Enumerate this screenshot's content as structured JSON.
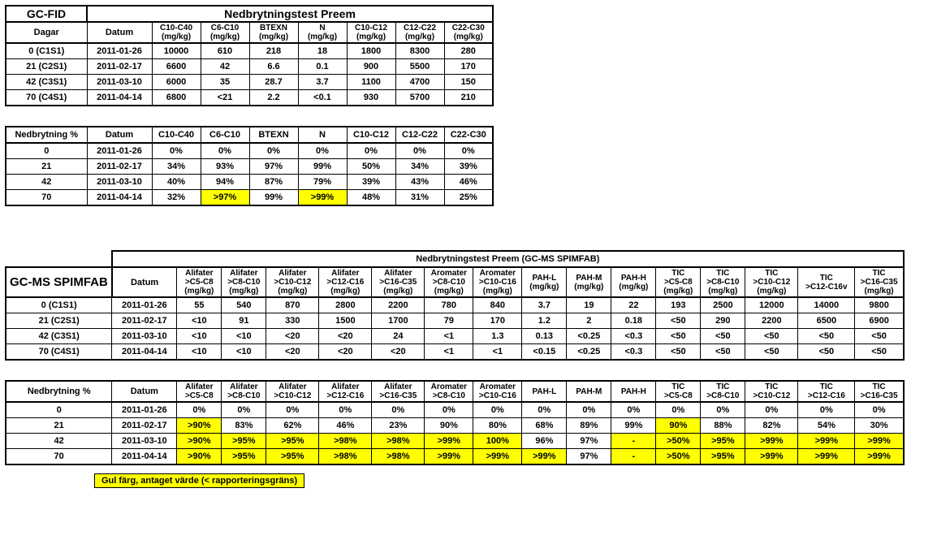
{
  "table1": {
    "corner": "GC-FID",
    "title": "Nedbrytningstest Preem",
    "row_label": "Dagar",
    "date_label": "Datum",
    "cols": [
      "C10-C40\n(mg/kg)",
      "C6-C10\n(mg/kg)",
      "BTEXN\n(mg/kg)",
      "N\n(mg/kg)",
      "C10-C12\n(mg/kg)",
      "C12-C22\n(mg/kg)",
      "C22-C30\n(mg/kg)"
    ],
    "rows": [
      {
        "d": "0 (C1S1)",
        "date": "2011-01-26",
        "v": [
          "10000",
          "610",
          "218",
          "18",
          "1800",
          "8300",
          "280"
        ]
      },
      {
        "d": "21 (C2S1)",
        "date": "2011-02-17",
        "v": [
          "6600",
          "42",
          "6.6",
          "0.1",
          "900",
          "5500",
          "170"
        ]
      },
      {
        "d": "42 (C3S1)",
        "date": "2011-03-10",
        "v": [
          "6000",
          "35",
          "28.7",
          "3.7",
          "1100",
          "4700",
          "150"
        ]
      },
      {
        "d": "70 (C4S1)",
        "date": "2011-04-14",
        "v": [
          "6800",
          "<21",
          "2.2",
          "<0.1",
          "930",
          "5700",
          "210"
        ]
      }
    ],
    "row_label2": "Nedbrytning %",
    "cols2": [
      "C10-C40",
      "C6-C10",
      "BTEXN",
      "N",
      "C10-C12",
      "C12-C22",
      "C22-C30"
    ],
    "rows2": [
      {
        "d": "0",
        "date": "2011-01-26",
        "v": [
          "0%",
          "0%",
          "0%",
          "0%",
          "0%",
          "0%",
          "0%"
        ],
        "hl": []
      },
      {
        "d": "21",
        "date": "2011-02-17",
        "v": [
          "34%",
          "93%",
          "97%",
          "99%",
          "50%",
          "34%",
          "39%"
        ],
        "hl": []
      },
      {
        "d": "42",
        "date": "2011-03-10",
        "v": [
          "40%",
          "94%",
          "87%",
          "79%",
          "39%",
          "43%",
          "46%"
        ],
        "hl": []
      },
      {
        "d": "70",
        "date": "2011-04-14",
        "v": [
          "32%",
          ">97%",
          "99%",
          ">99%",
          "48%",
          "31%",
          "25%"
        ],
        "hl": [
          1,
          3
        ]
      }
    ]
  },
  "table2": {
    "corner": "GC-MS SPIMFAB",
    "title": "Nedbrytningstest Preem (GC-MS SPIMFAB)",
    "date_label": "Datum",
    "cols": [
      "Alifater\n>C5-C8\n(mg/kg)",
      "Alifater\n>C8-C10\n(mg/kg)",
      "Alifater\n>C10-C12\n(mg/kg)",
      "Alifater\n>C12-C16\n(mg/kg)",
      "Alifater\n>C16-C35\n(mg/kg)",
      "Aromater\n>C8-C10\n(mg/kg)",
      "Aromater\n>C10-C16\n(mg/kg)",
      "PAH-L\n(mg/kg)",
      "PAH-M\n(mg/kg)",
      "PAH-H\n(mg/kg)",
      "TIC\n>C5-C8\n(mg/kg)",
      "TIC\n>C8-C10\n(mg/kg)",
      "TIC\n>C10-C12\n(mg/kg)",
      "TIC\n>C12-C16v",
      "TIC\n>C16-C35\n(mg/kg)"
    ],
    "rows": [
      {
        "d": "0 (C1S1)",
        "date": "2011-01-26",
        "v": [
          "55",
          "540",
          "870",
          "2800",
          "2200",
          "780",
          "840",
          "3.7",
          "19",
          "22",
          "193",
          "2500",
          "12000",
          "14000",
          "9800"
        ]
      },
      {
        "d": "21 (C2S1)",
        "date": "2011-02-17",
        "v": [
          "<10",
          "91",
          "330",
          "1500",
          "1700",
          "79",
          "170",
          "1.2",
          "2",
          "0.18",
          "<50",
          "290",
          "2200",
          "6500",
          "6900"
        ]
      },
      {
        "d": "42 (C3S1)",
        "date": "2011-03-10",
        "v": [
          "<10",
          "<10",
          "<20",
          "<20",
          "24",
          "<1",
          "1.3",
          "0.13",
          "<0.25",
          "<0.3",
          "<50",
          "<50",
          "<50",
          "<50",
          "<50"
        ]
      },
      {
        "d": "70 (C4S1)",
        "date": "2011-04-14",
        "v": [
          "<10",
          "<10",
          "<20",
          "<20",
          "<20",
          "<1",
          "<1",
          "<0.15",
          "<0.25",
          "<0.3",
          "<50",
          "<50",
          "<50",
          "<50",
          "<50"
        ]
      }
    ],
    "row_label2": "Nedbrytning %",
    "cols2": [
      "Alifater\n>C5-C8",
      "Alifater\n>C8-C10",
      "Alifater\n>C10-C12",
      "Alifater\n>C12-C16",
      "Alifater\n>C16-C35",
      "Aromater\n>C8-C10",
      "Aromater\n>C10-C16",
      "PAH-L",
      "PAH-M",
      "PAH-H",
      "TIC\n>C5-C8",
      "TIC\n>C8-C10",
      "TIC\n>C10-C12",
      "TIC\n>C12-C16",
      "TIC\n>C16-C35"
    ],
    "rows2": [
      {
        "d": "0",
        "date": "2011-01-26",
        "v": [
          "0%",
          "0%",
          "0%",
          "0%",
          "0%",
          "0%",
          "0%",
          "0%",
          "0%",
          "0%",
          "0%",
          "0%",
          "0%",
          "0%",
          "0%"
        ],
        "hl": []
      },
      {
        "d": "21",
        "date": "2011-02-17",
        "v": [
          ">90%",
          "83%",
          "62%",
          "46%",
          "23%",
          "90%",
          "80%",
          "68%",
          "89%",
          "99%",
          "90%",
          "88%",
          "82%",
          "54%",
          "30%"
        ],
        "hl": [
          0,
          10
        ]
      },
      {
        "d": "42",
        "date": "2011-03-10",
        "v": [
          ">90%",
          ">95%",
          ">95%",
          ">98%",
          ">98%",
          ">99%",
          "100%",
          "96%",
          "97%",
          "-",
          ">50%",
          ">95%",
          ">99%",
          ">99%",
          ">99%"
        ],
        "hl": [
          0,
          1,
          2,
          3,
          4,
          5,
          6,
          9,
          10,
          11,
          12,
          13,
          14
        ]
      },
      {
        "d": "70",
        "date": "2011-04-14",
        "v": [
          ">90%",
          ">95%",
          ">95%",
          ">98%",
          ">98%",
          ">99%",
          ">99%",
          ">99%",
          "97%",
          "-",
          ">50%",
          ">95%",
          ">99%",
          ">99%",
          ">99%"
        ],
        "hl": [
          0,
          1,
          2,
          3,
          4,
          5,
          6,
          7,
          9,
          10,
          11,
          12,
          13,
          14
        ]
      }
    ]
  },
  "legend": "Gul färg, antaget värde (< rapporteringsgräns)",
  "colwidths1": [
    100,
    80,
    60,
    60,
    60,
    60,
    60,
    60,
    60
  ],
  "colwidths2": [
    80,
    80,
    55,
    55,
    65,
    65,
    65,
    60,
    60,
    55,
    55,
    55,
    55,
    55,
    65,
    70,
    60
  ]
}
